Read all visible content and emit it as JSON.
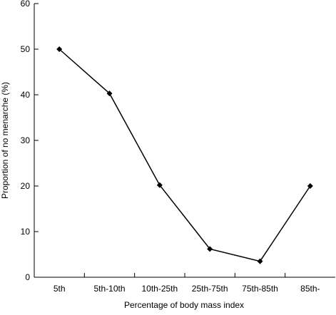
{
  "chart_data": {
    "type": "line",
    "title": "",
    "xlabel": "Percentage of body mass index",
    "ylabel": "Proportion of no menarche (%)",
    "categories": [
      "5th",
      "5th-10th",
      "10th-25th",
      "25th-75th",
      "75th-85th",
      "85th-"
    ],
    "series": [
      {
        "values": [
          50,
          40.3,
          20.2,
          6.2,
          3.5,
          20.0
        ],
        "color": "#000000",
        "marker": "diamond"
      }
    ],
    "ylim": [
      0,
      60
    ],
    "yticks": [
      0,
      10,
      20,
      30,
      40,
      50,
      60
    ],
    "grid": false,
    "legend": "none"
  }
}
